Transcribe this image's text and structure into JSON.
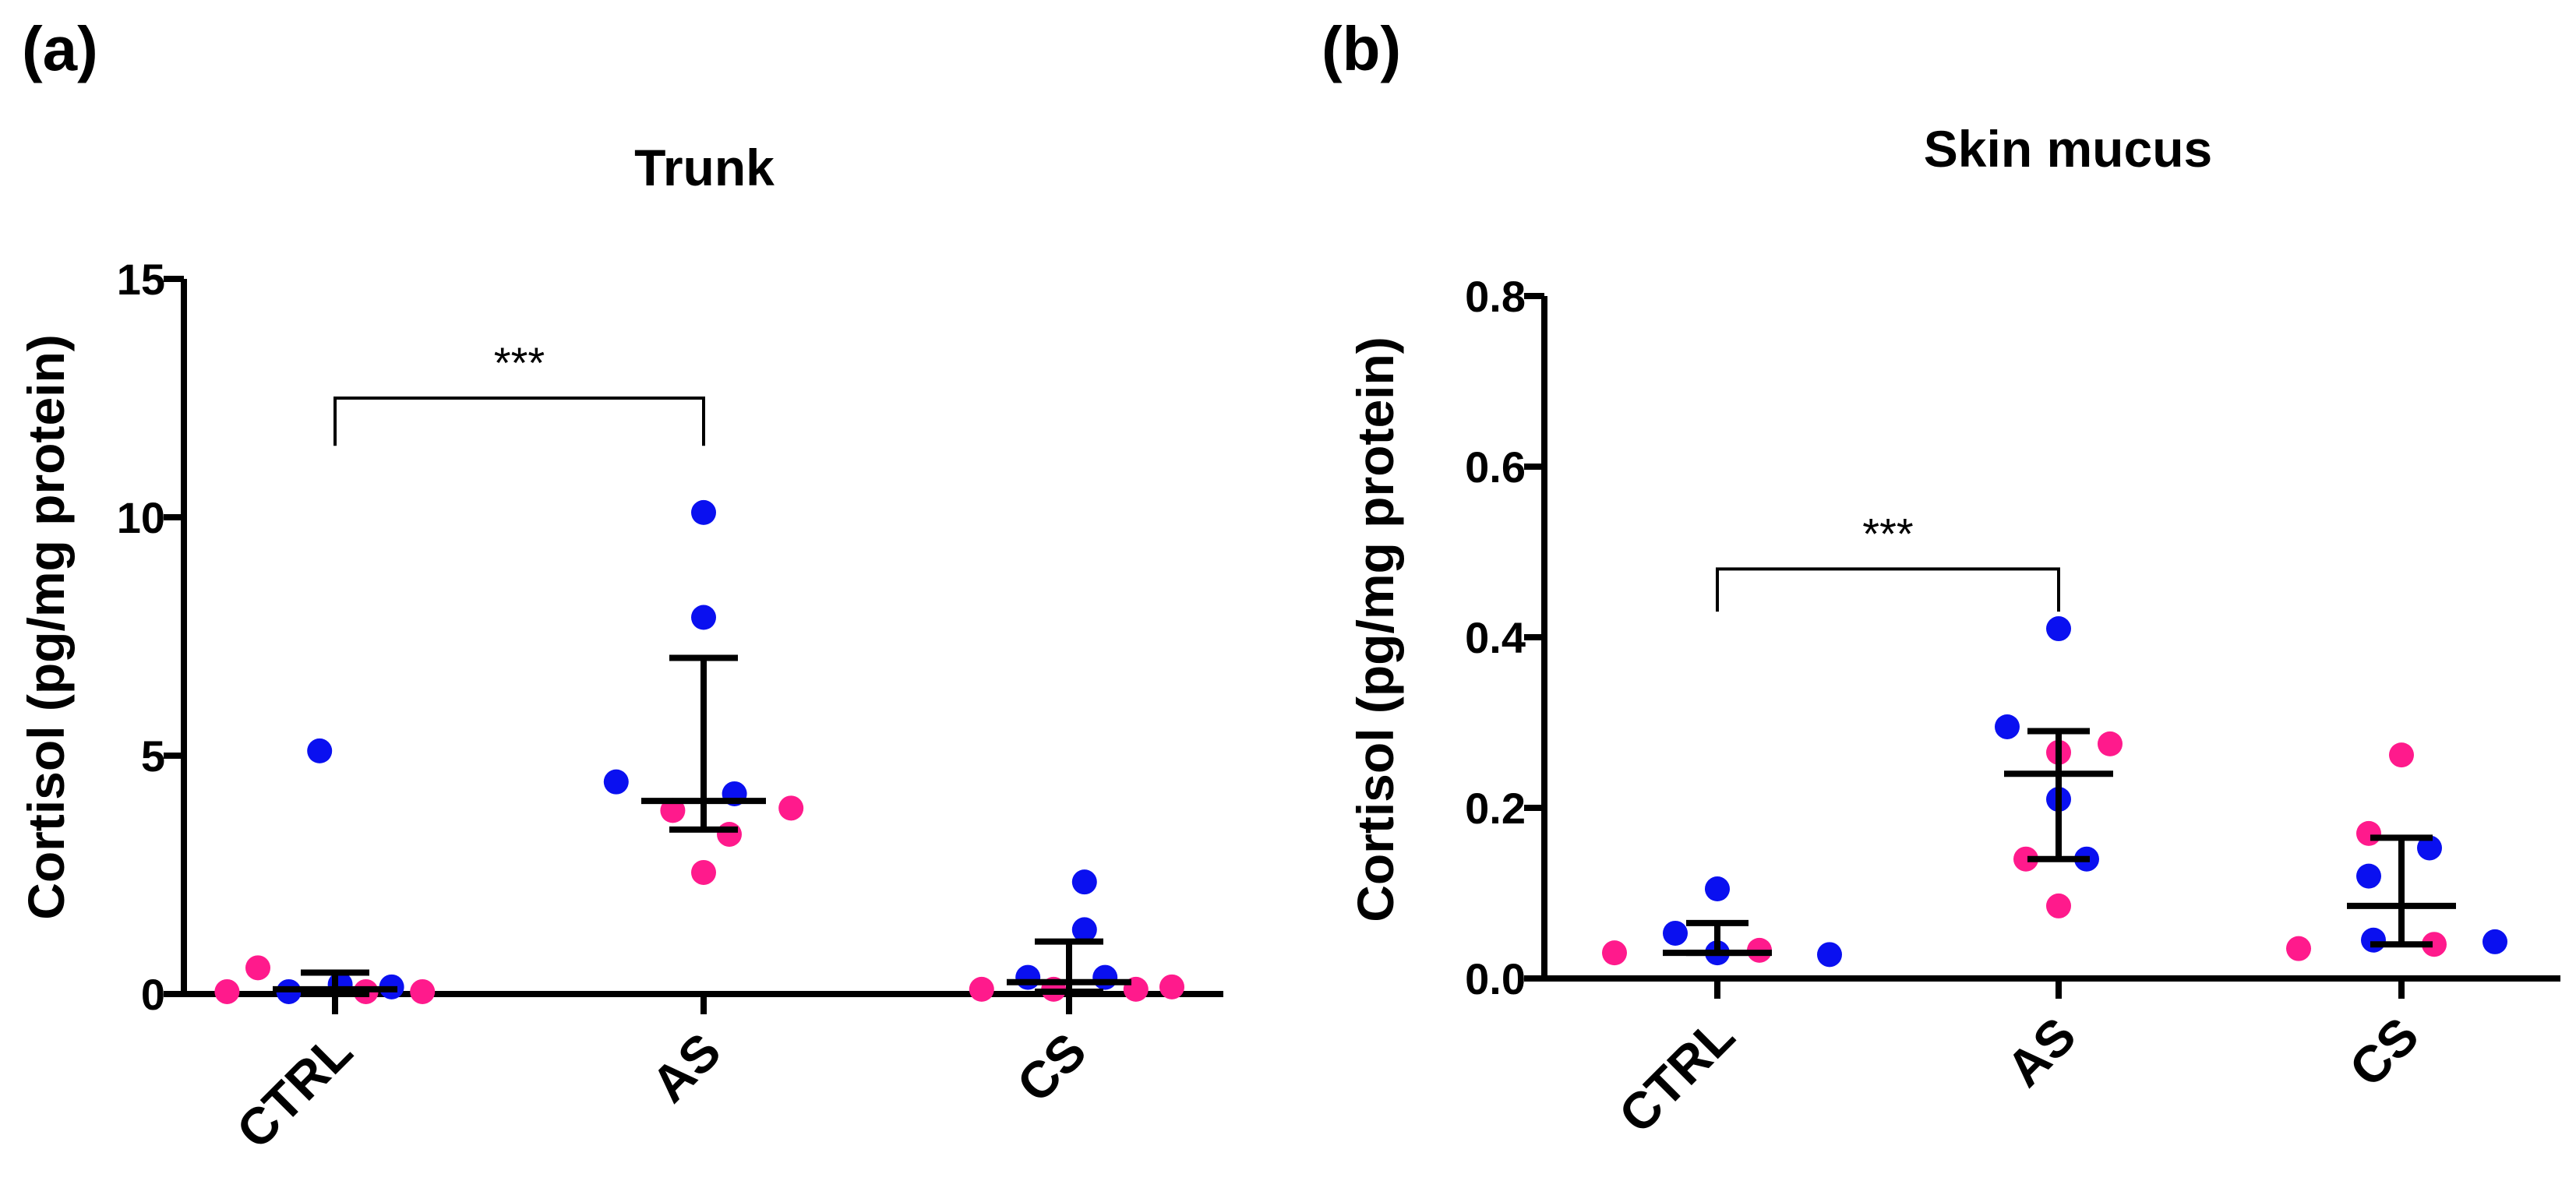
{
  "chart_data": [
    {
      "type": "scatter",
      "panel_label": "(a)",
      "title": "Trunk",
      "xlabel": "",
      "ylabel": "Cortisol (pg/mg protein)",
      "ylim": [
        0,
        15
      ],
      "yticks": [
        0,
        5,
        10,
        15
      ],
      "ytick_labels": [
        "0",
        "5",
        "10",
        "15"
      ],
      "categories": [
        "CTRL",
        "AS",
        "CS"
      ],
      "series_colors": {
        "pink": "#ff1a8c",
        "blue": "#0a10f0"
      },
      "points": [
        {
          "category": "CTRL",
          "offset": -0.42,
          "y": 0.05,
          "color": "pink"
        },
        {
          "category": "CTRL",
          "offset": -0.3,
          "y": 0.55,
          "color": "pink"
        },
        {
          "category": "CTRL",
          "offset": -0.18,
          "y": 0.05,
          "color": "blue"
        },
        {
          "category": "CTRL",
          "offset": -0.06,
          "y": 5.1,
          "color": "blue"
        },
        {
          "category": "CTRL",
          "offset": 0.02,
          "y": 0.2,
          "color": "blue"
        },
        {
          "category": "CTRL",
          "offset": 0.12,
          "y": 0.05,
          "color": "pink"
        },
        {
          "category": "CTRL",
          "offset": 0.22,
          "y": 0.15,
          "color": "blue"
        },
        {
          "category": "CTRL",
          "offset": 0.34,
          "y": 0.05,
          "color": "pink"
        },
        {
          "category": "AS",
          "offset": -0.34,
          "y": 4.45,
          "color": "blue"
        },
        {
          "category": "AS",
          "offset": -0.12,
          "y": 3.85,
          "color": "pink"
        },
        {
          "category": "AS",
          "offset": 0.0,
          "y": 10.1,
          "color": "blue"
        },
        {
          "category": "AS",
          "offset": 0.0,
          "y": 7.9,
          "color": "blue"
        },
        {
          "category": "AS",
          "offset": 0.0,
          "y": 2.55,
          "color": "pink"
        },
        {
          "category": "AS",
          "offset": 0.1,
          "y": 3.35,
          "color": "pink"
        },
        {
          "category": "AS",
          "offset": 0.12,
          "y": 4.2,
          "color": "blue"
        },
        {
          "category": "AS",
          "offset": 0.34,
          "y": 3.9,
          "color": "pink"
        },
        {
          "category": "CS",
          "offset": -0.34,
          "y": 0.1,
          "color": "pink"
        },
        {
          "category": "CS",
          "offset": -0.16,
          "y": 0.35,
          "color": "blue"
        },
        {
          "category": "CS",
          "offset": -0.06,
          "y": 0.1,
          "color": "pink"
        },
        {
          "category": "CS",
          "offset": 0.06,
          "y": 2.35,
          "color": "blue"
        },
        {
          "category": "CS",
          "offset": 0.06,
          "y": 1.35,
          "color": "blue"
        },
        {
          "category": "CS",
          "offset": 0.14,
          "y": 0.35,
          "color": "blue"
        },
        {
          "category": "CS",
          "offset": 0.26,
          "y": 0.1,
          "color": "pink"
        },
        {
          "category": "CS",
          "offset": 0.4,
          "y": 0.15,
          "color": "pink"
        }
      ],
      "summary": [
        {
          "category": "CTRL",
          "median": 0.1,
          "lower": 0.0,
          "upper": 0.45
        },
        {
          "category": "AS",
          "median": 4.05,
          "lower": 3.45,
          "upper": 7.05
        },
        {
          "category": "CS",
          "median": 0.25,
          "lower": 0.05,
          "upper": 1.1
        }
      ],
      "significance": [
        {
          "from": "CTRL",
          "to": "AS",
          "label": "***",
          "y": 12.5,
          "drop": 1.0
        }
      ]
    },
    {
      "type": "scatter",
      "panel_label": "(b)",
      "title": "Skin mucus",
      "xlabel": "",
      "ylabel": "Cortisol (pg/mg protein)",
      "ylim": [
        0,
        0.8
      ],
      "yticks": [
        0,
        0.2,
        0.4,
        0.6,
        0.8
      ],
      "ytick_labels": [
        "0.0",
        "0.2",
        "0.4",
        "0.6",
        "0.8"
      ],
      "categories": [
        "CTRL",
        "AS",
        "CS"
      ],
      "series_colors": {
        "pink": "#ff1a8c",
        "blue": "#0a10f0"
      },
      "points": [
        {
          "category": "CTRL",
          "offset": -0.44,
          "y": 0.03,
          "color": "pink"
        },
        {
          "category": "CTRL",
          "offset": -0.18,
          "y": 0.053,
          "color": "blue"
        },
        {
          "category": "CTRL",
          "offset": 0.0,
          "y": 0.105,
          "color": "blue"
        },
        {
          "category": "CTRL",
          "offset": 0.0,
          "y": 0.03,
          "color": "blue"
        },
        {
          "category": "CTRL",
          "offset": 0.18,
          "y": 0.033,
          "color": "pink"
        },
        {
          "category": "CTRL",
          "offset": 0.48,
          "y": 0.028,
          "color": "blue"
        },
        {
          "category": "AS",
          "offset": -0.22,
          "y": 0.295,
          "color": "blue"
        },
        {
          "category": "AS",
          "offset": -0.14,
          "y": 0.14,
          "color": "pink"
        },
        {
          "category": "AS",
          "offset": 0.0,
          "y": 0.41,
          "color": "blue"
        },
        {
          "category": "AS",
          "offset": 0.0,
          "y": 0.265,
          "color": "pink"
        },
        {
          "category": "AS",
          "offset": 0.0,
          "y": 0.21,
          "color": "blue"
        },
        {
          "category": "AS",
          "offset": 0.0,
          "y": 0.085,
          "color": "pink"
        },
        {
          "category": "AS",
          "offset": 0.12,
          "y": 0.14,
          "color": "blue"
        },
        {
          "category": "AS",
          "offset": 0.22,
          "y": 0.275,
          "color": "pink"
        },
        {
          "category": "CS",
          "offset": -0.44,
          "y": 0.035,
          "color": "pink"
        },
        {
          "category": "CS",
          "offset": -0.14,
          "y": 0.17,
          "color": "pink"
        },
        {
          "category": "CS",
          "offset": -0.14,
          "y": 0.12,
          "color": "blue"
        },
        {
          "category": "CS",
          "offset": -0.12,
          "y": 0.045,
          "color": "blue"
        },
        {
          "category": "CS",
          "offset": 0.0,
          "y": 0.262,
          "color": "pink"
        },
        {
          "category": "CS",
          "offset": 0.12,
          "y": 0.153,
          "color": "blue"
        },
        {
          "category": "CS",
          "offset": 0.14,
          "y": 0.04,
          "color": "pink"
        },
        {
          "category": "CS",
          "offset": 0.4,
          "y": 0.043,
          "color": "blue"
        }
      ],
      "summary": [
        {
          "category": "CTRL",
          "median": 0.03,
          "lower": 0.03,
          "upper": 0.065
        },
        {
          "category": "AS",
          "median": 0.24,
          "lower": 0.14,
          "upper": 0.29
        },
        {
          "category": "CS",
          "median": 0.085,
          "lower": 0.04,
          "upper": 0.165
        }
      ],
      "significance": [
        {
          "from": "CTRL",
          "to": "AS",
          "label": "***",
          "y": 0.48,
          "drop": 0.05
        }
      ]
    }
  ]
}
